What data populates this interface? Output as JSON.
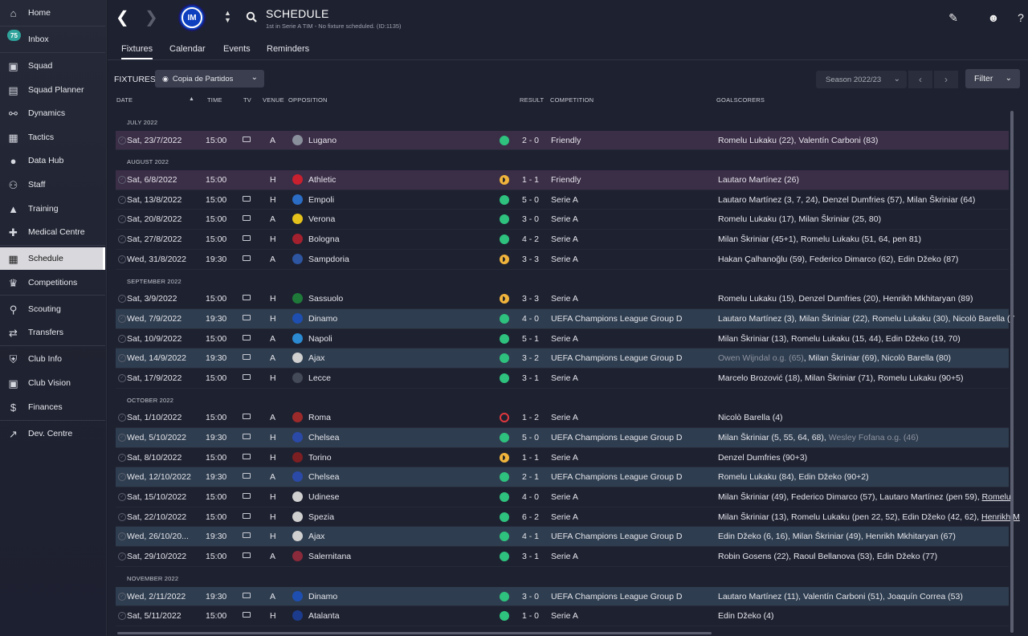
{
  "sidebar": {
    "items": [
      {
        "label": "Home",
        "icon": "home-icon",
        "glyph": "⌂"
      },
      {
        "label": "Inbox",
        "icon": "inbox-icon",
        "glyph": "✉",
        "badge": "75"
      },
      {
        "label": "Squad",
        "icon": "squad-icon",
        "glyph": "👕"
      },
      {
        "label": "Squad Planner",
        "icon": "squad-planner-icon",
        "glyph": "▤"
      },
      {
        "label": "Dynamics",
        "icon": "dynamics-icon",
        "glyph": "⚯"
      },
      {
        "label": "Tactics",
        "icon": "tactics-icon",
        "glyph": "▦"
      },
      {
        "label": "Data Hub",
        "icon": "data-hub-icon",
        "glyph": "●"
      },
      {
        "label": "Staff",
        "icon": "staff-icon",
        "glyph": "👥"
      },
      {
        "label": "Training",
        "icon": "training-icon",
        "glyph": "▲"
      },
      {
        "label": "Medical Centre",
        "icon": "medical-centre-icon",
        "glyph": "✚"
      },
      {
        "label": "Schedule",
        "icon": "schedule-icon",
        "glyph": "▦"
      },
      {
        "label": "Competitions",
        "icon": "competitions-icon",
        "glyph": "🏆"
      },
      {
        "label": "Scouting",
        "icon": "scouting-icon",
        "glyph": "🔍"
      },
      {
        "label": "Transfers",
        "icon": "transfers-icon",
        "glyph": "⇄"
      },
      {
        "label": "Club Info",
        "icon": "club-info-icon",
        "glyph": "⛨"
      },
      {
        "label": "Club Vision",
        "icon": "club-vision-icon",
        "glyph": "▣"
      },
      {
        "label": "Finances",
        "icon": "finances-icon",
        "glyph": "$"
      },
      {
        "label": "Dev. Centre",
        "icon": "dev-centre-icon",
        "glyph": "↗"
      }
    ]
  },
  "header": {
    "title": "SCHEDULE",
    "subtitle": "1st in Serie A TIM - No fixture scheduled. (ID:1135)",
    "crest_text": "IM"
  },
  "tabs": [
    "Fixtures",
    "Calendar",
    "Events",
    "Reminders"
  ],
  "toolbar": {
    "fixtures_label": "FIXTURES",
    "view": "Copia de Partidos",
    "season": "Season 2022/23",
    "filter": "Filter"
  },
  "columns": {
    "date": "DATE",
    "time": "TIME",
    "tv": "TV",
    "venue": "VENUE",
    "opposition": "OPPOSITION",
    "result": "RESULT",
    "competition": "COMPETITION",
    "goalscorers": "GOALSCORERS"
  },
  "months": [
    "JULY 2022",
    "AUGUST 2022",
    "SEPTEMBER 2022",
    "OCTOBER 2022",
    "NOVEMBER 2022"
  ],
  "fixtures": [
    {
      "date": "Sat, 23/7/2022",
      "time": "15:00",
      "venue": "A",
      "opp": "Lugano",
      "res": "2 - 0",
      "comp": "Friendly",
      "goals": "Romelu Lukaku (22), Valentín Carboni (83)"
    },
    {
      "date": "Sat, 6/8/2022",
      "time": "15:00",
      "venue": "H",
      "opp": "Athletic",
      "res": "1 - 1",
      "comp": "Friendly",
      "goals": "Lautaro Martínez (26)"
    },
    {
      "date": "Sat, 13/8/2022",
      "time": "15:00",
      "venue": "H",
      "opp": "Empoli",
      "res": "5 - 0",
      "comp": "Serie A",
      "goals": "Lautaro Martínez (3, 7, 24), Denzel Dumfries (57), Milan Škriniar (64)"
    },
    {
      "date": "Sat, 20/8/2022",
      "time": "15:00",
      "venue": "A",
      "opp": "Verona",
      "res": "3 - 0",
      "comp": "Serie A",
      "goals": "Romelu Lukaku (17), Milan Škriniar (25, 80)"
    },
    {
      "date": "Sat, 27/8/2022",
      "time": "15:00",
      "venue": "H",
      "opp": "Bologna",
      "res": "4 - 2",
      "comp": "Serie A",
      "goals": "Milan Škriniar (45+1), Romelu Lukaku (51, 64, pen 81)"
    },
    {
      "date": "Wed, 31/8/2022",
      "time": "19:30",
      "venue": "A",
      "opp": "Sampdoria",
      "res": "3 - 3",
      "comp": "Serie A",
      "goals": "Hakan Çalhanoğlu (59), Federico Dimarco (62), Edin Džeko (87)"
    },
    {
      "date": "Sat, 3/9/2022",
      "time": "15:00",
      "venue": "H",
      "opp": "Sassuolo",
      "res": "3 - 3",
      "comp": "Serie A",
      "goals": "Romelu Lukaku (15), Denzel Dumfries (20), Henrikh Mkhitaryan (89)"
    },
    {
      "date": "Wed, 7/9/2022",
      "time": "19:30",
      "venue": "H",
      "opp": "Dinamo",
      "res": "4 - 0",
      "comp": "UEFA Champions League Group D",
      "goals": "Lautaro Martínez (3), Milan Škriniar (22), Romelu Lukaku (30), Nicolò Barella (7"
    },
    {
      "date": "Sat, 10/9/2022",
      "time": "15:00",
      "venue": "A",
      "opp": "Napoli",
      "res": "5 - 1",
      "comp": "Serie A",
      "goals": "Milan Škriniar (13), Romelu Lukaku (15, 44), Edin Džeko (19, 70)"
    },
    {
      "date": "Wed, 14/9/2022",
      "time": "19:30",
      "venue": "A",
      "opp": "Ajax",
      "res": "3 - 2",
      "comp": "UEFA Champions League Group D",
      "goals_og": "Owen Wijndal o.g. (65)",
      "goals": ", Milan Škriniar (69), Nicolò Barella (80)"
    },
    {
      "date": "Sat, 17/9/2022",
      "time": "15:00",
      "venue": "H",
      "opp": "Lecce",
      "res": "3 - 1",
      "comp": "Serie A",
      "goals": "Marcelo Brozović (18), Milan Škriniar (71), Romelu Lukaku (90+5)"
    },
    {
      "date": "Sat, 1/10/2022",
      "time": "15:00",
      "venue": "A",
      "opp": "Roma",
      "res": "1 - 2",
      "comp": "Serie A",
      "goals": "Nicolò Barella (4)"
    },
    {
      "date": "Wed, 5/10/2022",
      "time": "19:30",
      "venue": "H",
      "opp": "Chelsea",
      "res": "5 - 0",
      "comp": "UEFA Champions League Group D",
      "goals": "Milan Škriniar (5, 55, 64, 68), ",
      "goals_og2": "Wesley Fofana o.g. (46)"
    },
    {
      "date": "Sat, 8/10/2022",
      "time": "15:00",
      "venue": "H",
      "opp": "Torino",
      "res": "1 - 1",
      "comp": "Serie A",
      "goals": "Denzel Dumfries (90+3)"
    },
    {
      "date": "Wed, 12/10/2022",
      "time": "19:30",
      "venue": "A",
      "opp": "Chelsea",
      "res": "2 - 1",
      "comp": "UEFA Champions League Group D",
      "goals": "Romelu Lukaku (84), Edin Džeko (90+2)"
    },
    {
      "date": "Sat, 15/10/2022",
      "time": "15:00",
      "venue": "H",
      "opp": "Udinese",
      "res": "4 - 0",
      "comp": "Serie A",
      "goals": "Milan Škriniar (49), Federico Dimarco (57), Lautaro Martínez (pen 59), ",
      "goals_ul": "Romelu"
    },
    {
      "date": "Sat, 22/10/2022",
      "time": "15:00",
      "venue": "H",
      "opp": "Spezia",
      "res": "6 - 2",
      "comp": "Serie A",
      "goals": "Milan Škriniar (13), Romelu Lukaku (pen 22, 52), Edin Džeko (42, 62), ",
      "goals_ul": "Henrikh M"
    },
    {
      "date": "Wed, 26/10/20...",
      "time": "19:30",
      "venue": "H",
      "opp": "Ajax",
      "res": "4 - 1",
      "comp": "UEFA Champions League Group D",
      "goals": "Edin Džeko (6, 16), Milan Škriniar (49), Henrikh Mkhitaryan (67)"
    },
    {
      "date": "Sat, 29/10/2022",
      "time": "15:00",
      "venue": "A",
      "opp": "Salernitana",
      "res": "3 - 1",
      "comp": "Serie A",
      "goals": "Robin Gosens (22), Raoul Bellanova (53), Edin Džeko (77)"
    },
    {
      "date": "Wed, 2/11/2022",
      "time": "19:30",
      "venue": "A",
      "opp": "Dinamo",
      "res": "3 - 0",
      "comp": "UEFA Champions League Group D",
      "goals": "Lautaro Martínez (11), Valentín Carboni (51), Joaquín Correa (53)"
    },
    {
      "date": "Sat, 5/11/2022",
      "time": "15:00",
      "venue": "H",
      "opp": "Atalanta",
      "res": "1 - 0",
      "comp": "Serie A",
      "goals": "Edin Džeko (4)"
    }
  ],
  "colors": {
    "win": "#2ec27e",
    "draw": "#f0b43c",
    "loss": "#e0383e",
    "friendly_row": "#3b2e47",
    "ucl_row": "#2e3d4f"
  }
}
